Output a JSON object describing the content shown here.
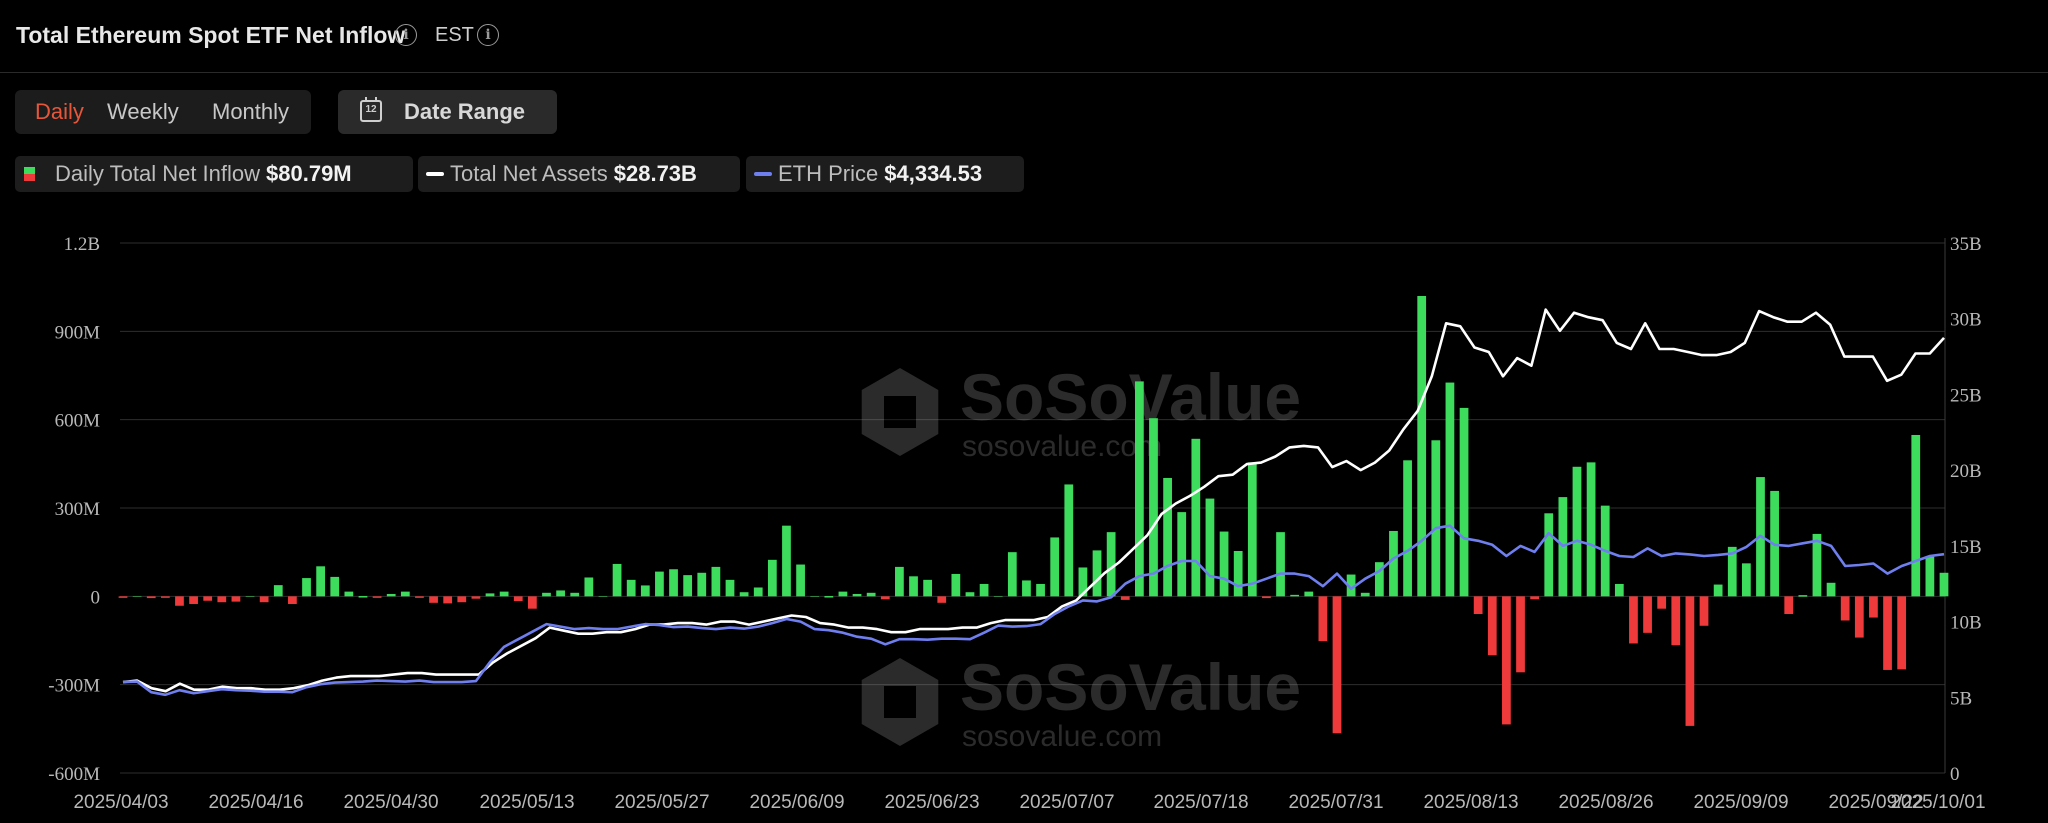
{
  "header": {
    "title": "Total Ethereum Spot ETF Net Inflow",
    "timezone": "EST"
  },
  "tabs": [
    {
      "label": "Daily",
      "active": true
    },
    {
      "label": "Weekly",
      "active": false
    },
    {
      "label": "Monthly",
      "active": false
    }
  ],
  "date_range": {
    "label": "Date Range",
    "icon": "calendar-icon"
  },
  "legend": [
    {
      "label": "Daily Total Net Inflow",
      "value": "$80.79M",
      "color_pos": "#3ddc5c",
      "color_neg": "#ee3a3a"
    },
    {
      "label": "Total Net Assets",
      "value": "$28.73B",
      "color": "#ffffff"
    },
    {
      "label": "ETH Price",
      "value": "$4,334.53",
      "color": "#6f7ff0"
    }
  ],
  "watermark": {
    "brand": "SoSoValue",
    "url": "sosovalue.com"
  },
  "colors": {
    "positive": "#3ddc5c",
    "negative": "#ee3a3a",
    "assets_line": "#ffffff",
    "price_line": "#6f7ff0",
    "grid": "#2e2e2e"
  },
  "chart_data": {
    "type": "bar",
    "title": "Total Ethereum Spot ETF Net Inflow",
    "x_range": [
      "2025-04-03",
      "2025-10-01"
    ],
    "x_tick_labels": [
      "2025/04/03",
      "2025/04/16",
      "2025/04/30",
      "2025/05/13",
      "2025/05/27",
      "2025/06/09",
      "2025/06/23",
      "2025/07/07",
      "2025/07/18",
      "2025/07/31",
      "2025/08/13",
      "2025/08/26",
      "2025/09/09",
      "2025/09/22",
      "2025/10/01"
    ],
    "y_left": {
      "ticks": [
        "1.2B",
        "900M",
        "600M",
        "300M",
        "0",
        "-300M",
        "-600M"
      ],
      "range_millions": [
        -600,
        1200
      ]
    },
    "y_right": {
      "ticks": [
        "35B",
        "30B",
        "25B",
        "20B",
        "15B",
        "10B",
        "5B",
        "0"
      ],
      "range_billions": [
        0,
        35
      ]
    },
    "grid": true,
    "series": [
      {
        "name": "Daily Total Net Inflow",
        "type": "bar",
        "unit": "millions USD",
        "values": [
          -3,
          0,
          -6,
          -3,
          -32,
          -26,
          -15,
          -20,
          -18,
          0,
          -20,
          38,
          -26,
          62,
          102,
          66,
          16,
          1,
          -4,
          8,
          16,
          -1,
          -22,
          -24,
          -20,
          -8,
          10,
          16,
          -16,
          -42,
          12,
          20,
          12,
          64,
          0,
          110,
          56,
          37,
          84,
          92,
          72,
          80,
          100,
          56,
          14,
          30,
          124,
          240,
          108,
          0,
          1,
          16,
          8,
          12,
          -10,
          100,
          68,
          56,
          -22,
          76,
          14,
          42,
          0,
          150,
          54,
          42,
          200,
          380,
          98,
          156,
          218,
          -12,
          730,
          605,
          402,
          286,
          535,
          332,
          220,
          154,
          455,
          -6,
          218,
          5,
          16,
          -152,
          -465,
          74,
          12,
          116,
          222,
          462,
          1020,
          530,
          726,
          640,
          -60,
          -200,
          -435,
          -258,
          -10,
          282,
          337,
          440,
          455,
          308,
          42,
          -160,
          -124,
          -42,
          -166,
          -440,
          -100,
          40,
          168,
          112,
          405,
          358,
          -60,
          4,
          212,
          46,
          -82,
          -140,
          -72,
          -250,
          -248,
          548,
          135,
          80
        ]
      },
      {
        "name": "Total Net Assets",
        "type": "line",
        "unit": "billions USD",
        "values": [
          6.0,
          6.1,
          5.6,
          5.4,
          5.9,
          5.5,
          5.5,
          5.7,
          5.6,
          5.6,
          5.5,
          5.5,
          5.6,
          5.8,
          6.1,
          6.3,
          6.4,
          6.4,
          6.4,
          6.5,
          6.6,
          6.6,
          6.5,
          6.5,
          6.5,
          6.5,
          7.3,
          7.9,
          8.4,
          8.9,
          9.6,
          9.4,
          9.2,
          9.2,
          9.3,
          9.3,
          9.5,
          9.8,
          9.8,
          9.9,
          9.9,
          9.8,
          10.0,
          10.0,
          9.8,
          10.0,
          10.2,
          10.4,
          10.3,
          9.9,
          9.8,
          9.6,
          9.6,
          9.5,
          9.3,
          9.3,
          9.5,
          9.5,
          9.5,
          9.6,
          9.6,
          9.9,
          10.1,
          10.1,
          10.1,
          10.3,
          11.0,
          11.4,
          12.3,
          13.2,
          13.9,
          14.8,
          15.7,
          17.1,
          17.8,
          18.3,
          18.9,
          19.6,
          19.7,
          20.4,
          20.5,
          20.9,
          21.5,
          21.6,
          21.5,
          20.2,
          20.6,
          20.0,
          20.5,
          21.3,
          22.7,
          23.9,
          26.2,
          29.7,
          29.5,
          28.1,
          27.8,
          26.2,
          27.4,
          26.9,
          30.6,
          29.2,
          30.4,
          30.1,
          29.9,
          28.4,
          28.0,
          29.7,
          28.0,
          28.0,
          27.8,
          27.6,
          27.6,
          27.8,
          28.4,
          30.5,
          30.1,
          29.8,
          29.8,
          30.4,
          29.6,
          27.5,
          27.5,
          27.5,
          25.9,
          26.3,
          27.7,
          27.7,
          28.73
        ]
      },
      {
        "name": "ETH Price",
        "type": "line",
        "unit": "USD",
        "values": [
          1800,
          1810,
          1600,
          1550,
          1640,
          1580,
          1620,
          1660,
          1640,
          1630,
          1610,
          1610,
          1600,
          1700,
          1760,
          1790,
          1800,
          1810,
          1830,
          1820,
          1810,
          1830,
          1800,
          1800,
          1800,
          1820,
          2200,
          2500,
          2650,
          2800,
          2950,
          2900,
          2850,
          2870,
          2850,
          2850,
          2900,
          2950,
          2930,
          2890,
          2900,
          2870,
          2850,
          2880,
          2860,
          2900,
          2970,
          3050,
          3000,
          2850,
          2830,
          2780,
          2700,
          2660,
          2550,
          2650,
          2650,
          2640,
          2660,
          2660,
          2650,
          2780,
          2920,
          2900,
          2910,
          2950,
          3150,
          3300,
          3420,
          3400,
          3480,
          3750,
          3900,
          3950,
          4100,
          4200,
          4200,
          3900,
          3850,
          3700,
          3750,
          3850,
          3950,
          3950,
          3900,
          3700,
          3950,
          3650,
          3850,
          4000,
          4250,
          4400,
          4600,
          4850,
          4900,
          4650,
          4600,
          4520,
          4300,
          4500,
          4380,
          4750,
          4500,
          4600,
          4520,
          4400,
          4300,
          4280,
          4450,
          4300,
          4350,
          4330,
          4300,
          4320,
          4350,
          4480,
          4700,
          4520,
          4500,
          4550,
          4600,
          4500,
          4100,
          4120,
          4150,
          3950,
          4100,
          4200,
          4300,
          4334.53
        ]
      }
    ]
  }
}
